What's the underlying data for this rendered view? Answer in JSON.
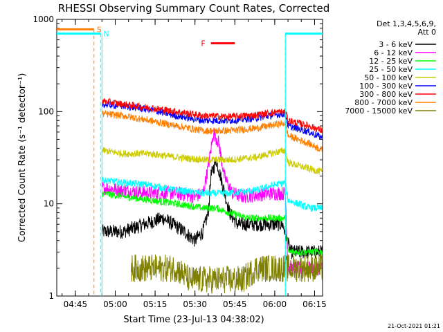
{
  "chart_data": {
    "type": "line",
    "title": "RHESSI Observing Summary Count Rates, Corrected",
    "xlabel": "Start Time (23-Jul-13 04:38:02)",
    "ylabel": "Corrected Count Rate (s⁻¹ detector⁻¹)",
    "yscale": "log",
    "ylim": [
      1,
      1000
    ],
    "xlim_minutes_after_0438": [
      0,
      100
    ],
    "x_ticks": [
      "04:45",
      "05:00",
      "05:15",
      "05:30",
      "05:45",
      "06:00",
      "06:15"
    ],
    "y_ticks": [
      "1",
      "10",
      "100",
      "1000"
    ],
    "legend": {
      "position": "top-right",
      "header_line1": "Det 1,3,4,5,6,9,",
      "header_line2": "Att 0"
    },
    "series": [
      {
        "name": "3 - 6 keV",
        "color": "#000000",
        "t": [
          17,
          25,
          33,
          40,
          48,
          52,
          55,
          57,
          58,
          60,
          62,
          65,
          68,
          72,
          80,
          85,
          88,
          95,
          100
        ],
        "values": [
          5,
          5,
          6,
          7,
          5,
          4,
          5,
          8,
          20,
          30,
          18,
          8,
          6,
          6,
          6,
          6,
          3,
          3,
          3
        ]
      },
      {
        "name": "6 - 12 keV",
        "color": "#ff00ff",
        "t": [
          17,
          25,
          35,
          45,
          52,
          55,
          57,
          59,
          61,
          63,
          66,
          70,
          80,
          86,
          87,
          95,
          100
        ],
        "values": [
          15,
          14,
          13,
          13,
          12,
          13,
          25,
          60,
          45,
          20,
          13,
          12,
          13,
          13,
          2,
          2,
          2
        ]
      },
      {
        "name": "12 - 25 keV",
        "color": "#00ff00",
        "t": [
          17,
          25,
          35,
          45,
          55,
          60,
          65,
          72,
          80,
          86,
          87,
          95,
          100
        ],
        "values": [
          13,
          12,
          11,
          10,
          9,
          9,
          8,
          7,
          7,
          7,
          3,
          3,
          3
        ]
      },
      {
        "name": "25 - 50 keV",
        "color": "#00ffff",
        "t": [
          17,
          25,
          35,
          45,
          55,
          65,
          75,
          82,
          86,
          87,
          95,
          100
        ],
        "values": [
          18,
          17,
          16,
          14,
          13,
          13,
          14,
          16,
          17,
          11,
          9,
          9
        ]
      },
      {
        "name": "50 - 100 keV",
        "color": "#cccc00",
        "t": [
          17,
          25,
          35,
          45,
          55,
          65,
          75,
          82,
          86,
          87,
          95,
          100
        ],
        "values": [
          38,
          35,
          35,
          32,
          30,
          30,
          32,
          36,
          38,
          28,
          24,
          22
        ]
      },
      {
        "name": "100 - 300 keV",
        "color": "#0000ff",
        "t": [
          17,
          25,
          35,
          45,
          55,
          65,
          75,
          82,
          86,
          87,
          95,
          100
        ],
        "values": [
          120,
          115,
          105,
          90,
          80,
          80,
          85,
          92,
          95,
          70,
          60,
          52
        ]
      },
      {
        "name": "300 - 800 keV",
        "color": "#ff0000",
        "t": [
          17,
          25,
          35,
          45,
          55,
          65,
          75,
          82,
          86,
          87,
          95,
          100
        ],
        "values": [
          130,
          120,
          110,
          100,
          90,
          88,
          92,
          98,
          100,
          80,
          70,
          62
        ]
      },
      {
        "name": "800 - 7000 keV",
        "color": "#ff8000",
        "t": [
          17,
          25,
          35,
          45,
          55,
          65,
          75,
          82,
          86,
          87,
          95,
          100
        ],
        "values": [
          95,
          90,
          80,
          70,
          62,
          62,
          66,
          72,
          75,
          55,
          45,
          38
        ]
      },
      {
        "name": "7000 - 15000 keV",
        "color": "#808000",
        "t": [
          28,
          35,
          45,
          50,
          55,
          60,
          65,
          70,
          75,
          80,
          85,
          90,
          95,
          100
        ],
        "values": [
          2,
          2,
          2,
          1.5,
          1.5,
          1.5,
          1.5,
          1.5,
          2,
          2,
          2,
          2,
          2,
          2
        ]
      }
    ],
    "state_bars": [
      {
        "label": "S",
        "color": "#ff8000",
        "y_level": 780,
        "segments": [
          [
            0,
            14
          ]
        ],
        "vline_t": 14
      },
      {
        "label": "N",
        "color": "#00ffff",
        "y_level": 700,
        "segments": [
          [
            0,
            16.5
          ],
          [
            86,
            100
          ]
        ],
        "vline_t": [
          16.5,
          86
        ]
      },
      {
        "label": "F",
        "color": "#ff0000",
        "y_level": 550,
        "segments": [
          [
            58,
            67
          ]
        ]
      }
    ],
    "data_start_t": 17
  },
  "footer": {
    "date": "21-Oct-2021 01:21"
  }
}
